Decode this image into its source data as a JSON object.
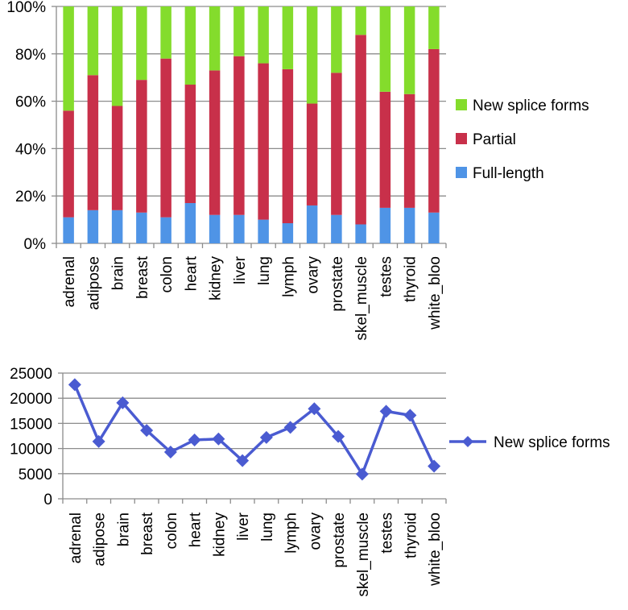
{
  "chart_data": [
    {
      "type": "bar",
      "stacked": true,
      "percent": true,
      "categories": [
        "adrenal",
        "adipose",
        "brain",
        "breast",
        "colon",
        "heart",
        "kidney",
        "liver",
        "lung",
        "lymph",
        "ovary",
        "prostate",
        "skel_muscle",
        "testes",
        "thyroid",
        "white_bloo"
      ],
      "series": [
        {
          "name": "Full-length",
          "color": "#4f94e6",
          "values": [
            11,
            14,
            14,
            13,
            11,
            17,
            12,
            12,
            10,
            8.5,
            16,
            12,
            8,
            15,
            15,
            13
          ]
        },
        {
          "name": "Partial",
          "color": "#c8304a",
          "values": [
            45,
            57,
            44,
            56,
            67,
            50,
            61,
            67,
            66,
            65,
            43,
            60,
            80,
            49,
            48,
            69
          ]
        },
        {
          "name": "New splice forms",
          "color": "#84dc2c",
          "values": [
            44,
            29,
            42,
            31,
            22,
            33,
            27,
            21,
            24,
            26.5,
            41,
            28,
            12,
            36,
            37,
            18
          ]
        }
      ],
      "ylim": [
        0,
        100
      ],
      "yticks": [
        "0%",
        "20%",
        "40%",
        "60%",
        "80%",
        "100%"
      ],
      "grid": true,
      "legend": "right"
    },
    {
      "type": "line",
      "categories": [
        "adrenal",
        "adipose",
        "brain",
        "breast",
        "colon",
        "heart",
        "kidney",
        "liver",
        "lung",
        "lymph",
        "ovary",
        "prostate",
        "skel_muscle",
        "testes",
        "thyroid",
        "white_bloo"
      ],
      "series": [
        {
          "name": "New splice forms",
          "color": "#4a5bd1",
          "values": [
            22700,
            11400,
            19100,
            13600,
            9300,
            11700,
            11900,
            7600,
            12200,
            14200,
            17900,
            12400,
            4900,
            17400,
            16600,
            6500
          ]
        }
      ],
      "ylim": [
        0,
        25000
      ],
      "yticks": [
        "0",
        "5000",
        "10000",
        "15000",
        "20000",
        "25000"
      ],
      "grid": true,
      "legend": "right"
    }
  ]
}
